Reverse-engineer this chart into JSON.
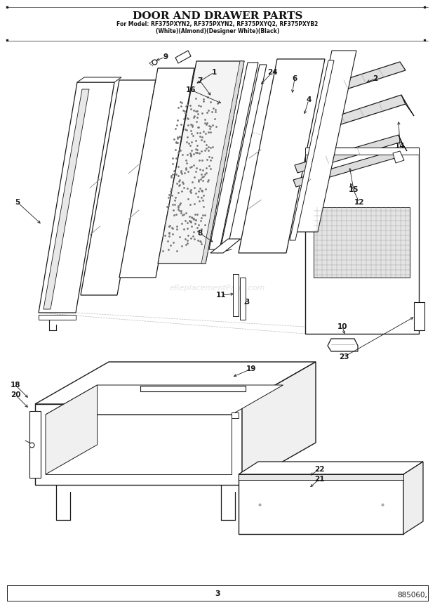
{
  "title_line1": "DOOR AND DRAWER PARTS",
  "title_line2": "For Model: RF375PXYN2, RF375PXYN2, RF375PXYQ2, RF375PXYB2",
  "title_line3": "(White)(Almond)(Designer White)(Black)",
  "page_number": "3",
  "doc_number": "885060,",
  "watermark": "eReplacementParts.com",
  "bg_color": "#ffffff",
  "lc": "#1a1a1a",
  "fig_width": 6.2,
  "fig_height": 8.61,
  "dpi": 100
}
